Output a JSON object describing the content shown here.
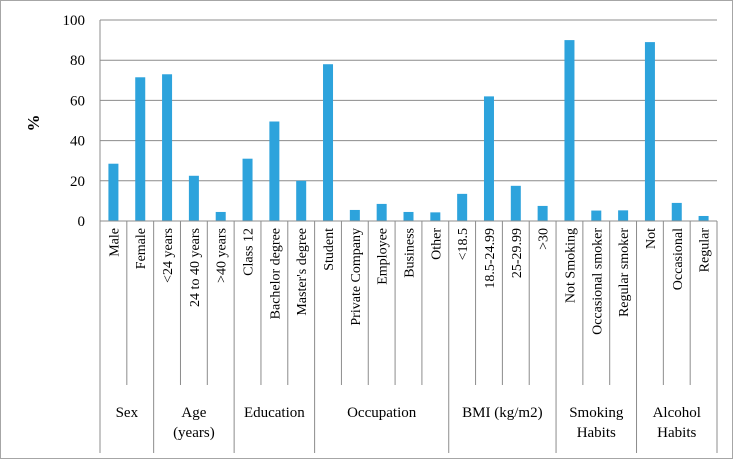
{
  "chart_data": {
    "type": "bar",
    "title": "",
    "xlabel": "",
    "ylabel": "%",
    "ylim": [
      0,
      100
    ],
    "yticks": [
      "0",
      "20",
      "40",
      "60",
      "80",
      "100"
    ],
    "grid": true,
    "bar_color": "#2da3dc",
    "categories": [
      "Male",
      "Female",
      "<24 years",
      "24 to 40 years",
      ">40 years",
      "Class 12",
      "Bachelor degree",
      "Master's degree",
      "Student",
      "Private Company",
      "Employee",
      "Business",
      "Other",
      "<18.5",
      "18.5-24.99",
      "25-29.99",
      ">30",
      "Not Smoking",
      "Occasional smoker",
      "Regular smoker",
      "Not",
      "Occasional",
      "Regular"
    ],
    "values": [
      28.5,
      71.5,
      73,
      22.5,
      4.5,
      31,
      49.5,
      20,
      78,
      5.5,
      8.5,
      4.5,
      4.3,
      13.5,
      62,
      17.5,
      7.5,
      90,
      5.2,
      5.3,
      89,
      9,
      2.5
    ],
    "groups": [
      {
        "label": [
          "Sex"
        ],
        "count": 2
      },
      {
        "label": [
          "Age",
          "(years)"
        ],
        "count": 3
      },
      {
        "label": [
          "Education"
        ],
        "count": 3
      },
      {
        "label": [
          "Occupation"
        ],
        "count": 5
      },
      {
        "label": [
          "BMI (kg/m2)"
        ],
        "count": 4
      },
      {
        "label": [
          "Smoking",
          "Habits"
        ],
        "count": 3
      },
      {
        "label": [
          "Alcohol",
          "Habits"
        ],
        "count": 3
      }
    ]
  }
}
